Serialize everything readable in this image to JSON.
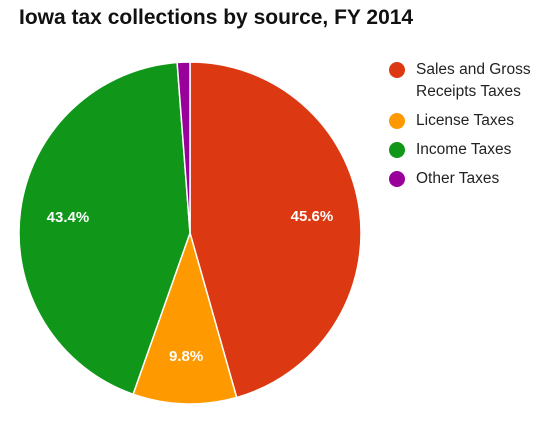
{
  "chart_data": {
    "type": "pie",
    "title": "Iowa tax collections by source, FY 2014",
    "legend_position": "right",
    "slices": [
      {
        "name": "Sales and Gross Receipts Taxes",
        "value": 45.6,
        "label": "45.6%",
        "color": "#dc3912"
      },
      {
        "name": "License Taxes",
        "value": 9.8,
        "label": "9.8%",
        "color": "#ff9900"
      },
      {
        "name": "Income Taxes",
        "value": 43.4,
        "label": "43.4%",
        "color": "#109618"
      },
      {
        "name": "Other Taxes",
        "value": 1.2,
        "label": "",
        "color": "#990099"
      }
    ]
  }
}
